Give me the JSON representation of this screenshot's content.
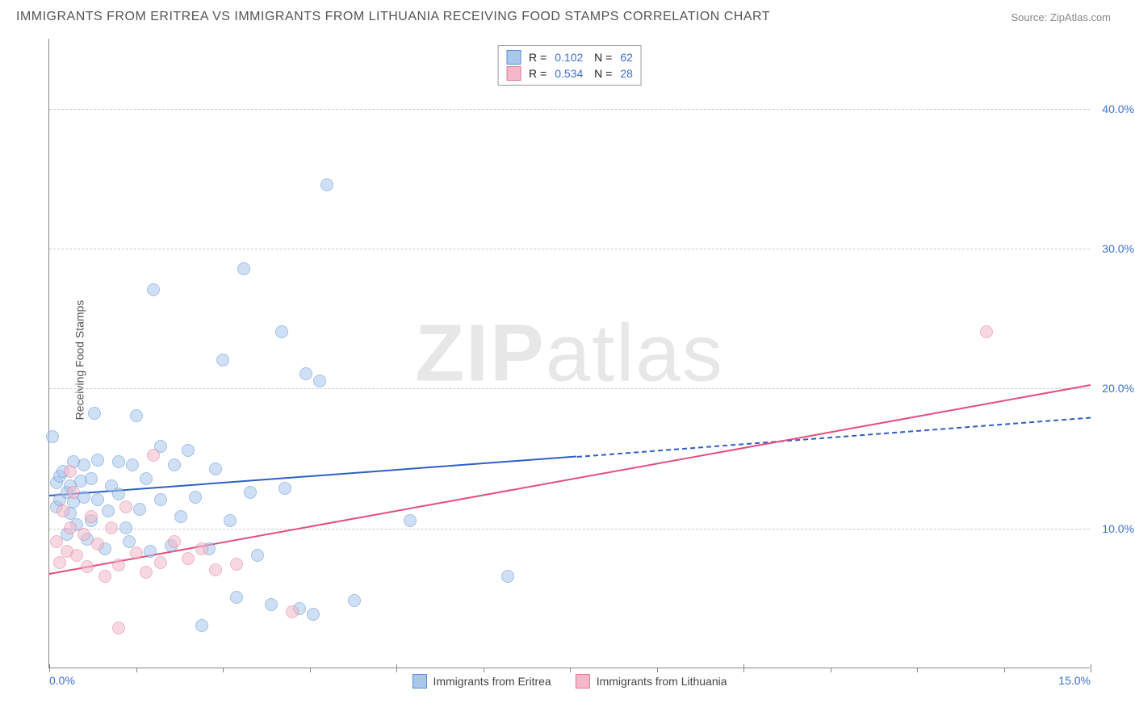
{
  "title": "IMMIGRANTS FROM ERITREA VS IMMIGRANTS FROM LITHUANIA RECEIVING FOOD STAMPS CORRELATION CHART",
  "source": "Source: ZipAtlas.com",
  "watermark_bold": "ZIP",
  "watermark_light": "atlas",
  "y_axis_title": "Receiving Food Stamps",
  "chart": {
    "type": "scatter",
    "xlim": [
      0,
      15
    ],
    "ylim": [
      0,
      45
    ],
    "x_ticks": [
      0,
      5,
      10,
      15
    ],
    "x_tick_labels": [
      "0.0%",
      "",
      "",
      "15.0%"
    ],
    "x_minor_ticks": [
      1.25,
      2.5,
      3.75,
      6.25,
      7.5,
      8.75,
      11.25,
      12.5,
      13.75
    ],
    "y_ticks": [
      10,
      20,
      30,
      40
    ],
    "y_tick_labels": [
      "10.0%",
      "20.0%",
      "30.0%",
      "40.0%"
    ],
    "background_color": "#ffffff",
    "grid_color": "#cccccc",
    "axis_color": "#888888",
    "tick_label_color": "#3b6fd6",
    "point_radius": 8,
    "point_opacity": 0.55,
    "series": [
      {
        "name": "Immigrants from Eritrea",
        "fill_color": "#a9c7ec",
        "stroke_color": "#5a8fd6",
        "line_color": "#2f5fc4",
        "R": "0.102",
        "N": "62",
        "regression": {
          "x1": 0,
          "y1": 12.4,
          "x2": 7.6,
          "y2": 15.2,
          "dash_x2": 15,
          "dash_y2": 18.0
        },
        "points": [
          [
            0.05,
            16.5
          ],
          [
            0.1,
            13.2
          ],
          [
            0.1,
            11.5
          ],
          [
            0.15,
            13.7
          ],
          [
            0.15,
            12.0
          ],
          [
            0.2,
            14.0
          ],
          [
            0.25,
            9.5
          ],
          [
            0.25,
            12.5
          ],
          [
            0.3,
            11.0
          ],
          [
            0.3,
            13.0
          ],
          [
            0.35,
            14.7
          ],
          [
            0.35,
            11.8
          ],
          [
            0.4,
            10.2
          ],
          [
            0.45,
            13.3
          ],
          [
            0.5,
            14.5
          ],
          [
            0.5,
            12.2
          ],
          [
            0.6,
            13.5
          ],
          [
            0.6,
            10.5
          ],
          [
            0.65,
            18.2
          ],
          [
            0.7,
            14.8
          ],
          [
            0.7,
            12.0
          ],
          [
            0.8,
            8.5
          ],
          [
            0.85,
            11.2
          ],
          [
            0.9,
            13.0
          ],
          [
            1.0,
            14.7
          ],
          [
            1.0,
            12.4
          ],
          [
            1.1,
            10.0
          ],
          [
            1.2,
            14.5
          ],
          [
            1.25,
            18.0
          ],
          [
            1.3,
            11.3
          ],
          [
            1.4,
            13.5
          ],
          [
            1.5,
            27.0
          ],
          [
            1.6,
            15.8
          ],
          [
            1.6,
            12.0
          ],
          [
            1.75,
            8.7
          ],
          [
            1.8,
            14.5
          ],
          [
            1.9,
            10.8
          ],
          [
            2.0,
            15.5
          ],
          [
            2.1,
            12.2
          ],
          [
            2.2,
            3.0
          ],
          [
            2.3,
            8.5
          ],
          [
            2.4,
            14.2
          ],
          [
            2.5,
            22.0
          ],
          [
            2.6,
            10.5
          ],
          [
            2.7,
            5.0
          ],
          [
            2.8,
            28.5
          ],
          [
            2.9,
            12.5
          ],
          [
            3.0,
            8.0
          ],
          [
            3.2,
            4.5
          ],
          [
            3.35,
            24.0
          ],
          [
            3.4,
            12.8
          ],
          [
            3.6,
            4.2
          ],
          [
            3.7,
            21.0
          ],
          [
            3.8,
            3.8
          ],
          [
            3.9,
            20.5
          ],
          [
            4.0,
            34.5
          ],
          [
            1.15,
            9.0
          ],
          [
            1.45,
            8.3
          ],
          [
            0.55,
            9.2
          ],
          [
            5.2,
            10.5
          ],
          [
            4.4,
            4.8
          ],
          [
            6.6,
            6.5
          ]
        ]
      },
      {
        "name": "Immigrants from Lithuania",
        "fill_color": "#f4b9c8",
        "stroke_color": "#e37a98",
        "line_color": "#e54e7a",
        "R": "0.534",
        "N": "28",
        "regression": {
          "x1": 0,
          "y1": 6.8,
          "x2": 15,
          "y2": 20.3
        },
        "points": [
          [
            0.1,
            9.0
          ],
          [
            0.15,
            7.5
          ],
          [
            0.2,
            11.2
          ],
          [
            0.25,
            8.3
          ],
          [
            0.3,
            14.0
          ],
          [
            0.3,
            10.0
          ],
          [
            0.35,
            12.5
          ],
          [
            0.4,
            8.0
          ],
          [
            0.5,
            9.5
          ],
          [
            0.55,
            7.2
          ],
          [
            0.6,
            10.8
          ],
          [
            0.7,
            8.8
          ],
          [
            0.8,
            6.5
          ],
          [
            0.9,
            10.0
          ],
          [
            1.0,
            7.3
          ],
          [
            1.1,
            11.5
          ],
          [
            1.25,
            8.2
          ],
          [
            1.4,
            6.8
          ],
          [
            1.5,
            15.2
          ],
          [
            1.6,
            7.5
          ],
          [
            1.8,
            9.0
          ],
          [
            2.0,
            7.8
          ],
          [
            2.2,
            8.5
          ],
          [
            2.4,
            7.0
          ],
          [
            2.7,
            7.4
          ],
          [
            1.0,
            2.8
          ],
          [
            3.5,
            4.0
          ],
          [
            13.5,
            24.0
          ]
        ]
      }
    ],
    "legend_bottom": [
      {
        "label": "Immigrants from Eritrea",
        "fill": "#a9c7ec",
        "stroke": "#5a8fd6"
      },
      {
        "label": "Immigrants from Lithuania",
        "fill": "#f4b9c8",
        "stroke": "#e37a98"
      }
    ]
  }
}
